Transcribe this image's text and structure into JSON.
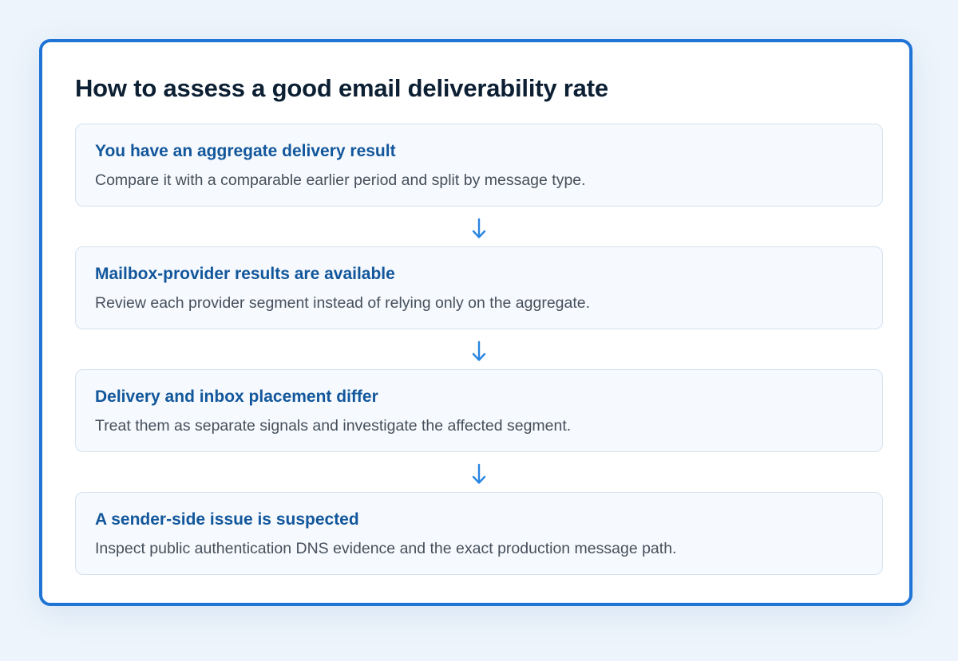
{
  "title": "How to assess a good email deliverability rate",
  "steps": [
    {
      "title": "You have an aggregate delivery result",
      "description": "Compare it with a comparable earlier period and split by message type."
    },
    {
      "title": "Mailbox-provider results are available",
      "description": "Review each provider segment instead of relying only on the aggregate."
    },
    {
      "title": "Delivery and inbox placement differ",
      "description": "Treat them as separate signals and investigate the affected segment."
    },
    {
      "title": "A sender-side issue is suspected",
      "description": "Inspect public authentication DNS evidence and the exact production message path."
    }
  ],
  "colors": {
    "accent": "#1f74d6",
    "step_title": "#12579c",
    "arrow": "#2a86e0"
  },
  "icons": {
    "connector": "arrow-down-icon"
  }
}
